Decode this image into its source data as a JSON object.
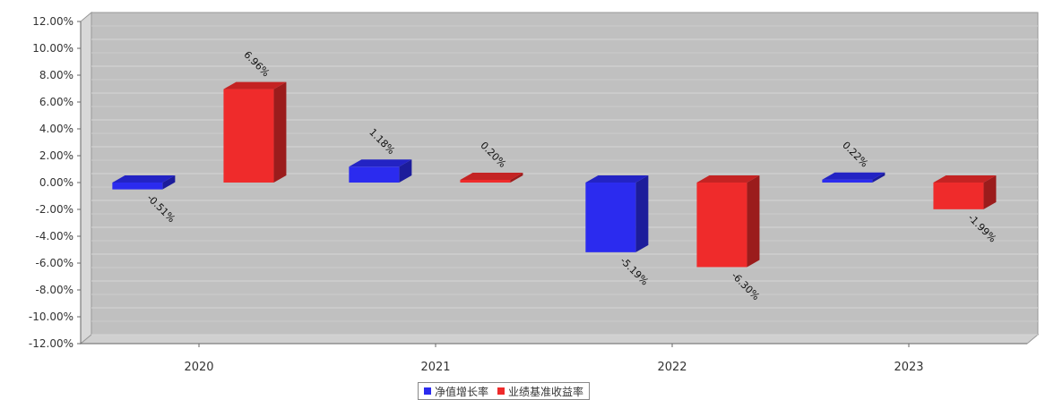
{
  "chart_data": {
    "type": "bar",
    "categories": [
      "2020",
      "2021",
      "2022",
      "2023"
    ],
    "series": [
      {
        "name": "净值增长率",
        "color": "#2b2bef",
        "values": [
          -0.51,
          1.18,
          -5.19,
          0.22
        ],
        "labels": [
          "-0.51%",
          "1.18%",
          "-5.19%",
          "0.22%"
        ]
      },
      {
        "name": "业绩基准收益率",
        "color": "#ef2b2b",
        "values": [
          6.96,
          0.2,
          -6.3,
          -1.99
        ],
        "labels": [
          "6.96%",
          "0.20%",
          "-6.30%",
          "-1.99%"
        ]
      }
    ],
    "ylim": [
      -12,
      12
    ],
    "yticks": [
      12,
      10,
      8,
      6,
      4,
      2,
      0,
      -2,
      -4,
      -6,
      -8,
      -10,
      -12
    ],
    "ytick_labels": [
      "12.00%",
      "10.00%",
      "8.00%",
      "6.00%",
      "4.00%",
      "2.00%",
      "0.00%",
      "-2.00%",
      "-4.00%",
      "-6.00%",
      "-8.00%",
      "-10.00%",
      "-12.00%"
    ],
    "grid": true,
    "legend_position": "bottom",
    "plot_background": "#c0c0c0"
  }
}
